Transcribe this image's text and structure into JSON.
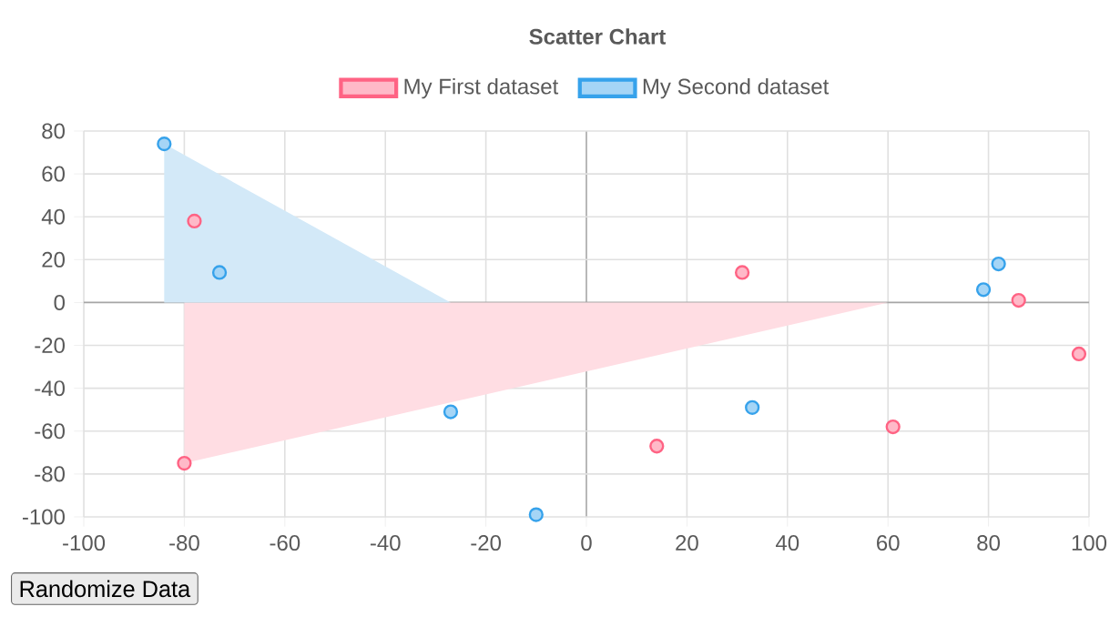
{
  "chart_data": {
    "type": "scatter",
    "title": "Scatter Chart",
    "series": [
      {
        "name": "My First dataset",
        "marker": "circle",
        "color": "#ff6384",
        "x": [
          -78,
          -80,
          14,
          31,
          61,
          86,
          98
        ],
        "values": [
          38,
          -75,
          -67,
          14,
          -58,
          1,
          -24
        ]
      },
      {
        "name": "My Second dataset",
        "marker": "circle",
        "color": "#36a2eb",
        "x": [
          -84,
          -73,
          -27,
          -10,
          33,
          79,
          82
        ],
        "values": [
          74,
          14,
          -51,
          -99,
          -49,
          6,
          18
        ]
      },
      {
        "type": "area",
        "marker": "none",
        "color": "#ffdde3",
        "x": [
          -80,
          60
        ],
        "values": [
          -75,
          0
        ]
      },
      {
        "type": "area",
        "marker": "none",
        "color": "#d3e9f8",
        "x": [
          -84,
          -27
        ],
        "values": [
          74,
          0
        ]
      }
    ],
    "xlim": [
      -100,
      100
    ],
    "ylim": [
      -100,
      80
    ],
    "xticks": [
      -100,
      -80,
      -60,
      -40,
      -20,
      0,
      20,
      40,
      60,
      80,
      100
    ],
    "yticks": [
      -100,
      -80,
      -60,
      -40,
      -20,
      0,
      20,
      40,
      60,
      80
    ],
    "grid": true,
    "legend": "top",
    "annotations": [
      "Randomize Data"
    ]
  }
}
